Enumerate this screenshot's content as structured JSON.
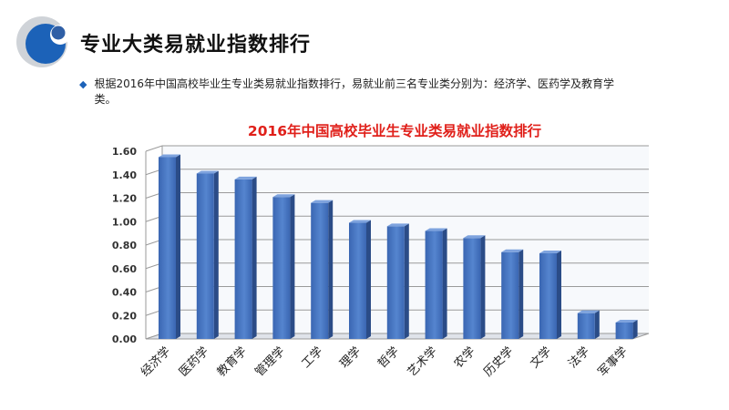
{
  "slide": {
    "title": "专业大类易就业指数排行",
    "bullet": "根据2016年中国高校毕业生专业类易就业指数排行，易就业前三名专业类分别为：经济学、医药学及教育学类。"
  },
  "colors": {
    "bar": "#4472c4",
    "chart_title": "#e0201a",
    "logo_blue": "#1c62b8",
    "bullet": "#1c62b8"
  },
  "chart_data": {
    "type": "bar",
    "title": "2016年中国高校毕业生专业类易就业指数排行",
    "xlabel": "",
    "ylabel": "",
    "ylim": [
      0,
      1.6
    ],
    "yticks": [
      "0.00",
      "0.20",
      "0.40",
      "0.60",
      "0.80",
      "1.00",
      "1.20",
      "1.40",
      "1.60"
    ],
    "grid": true,
    "categories": [
      "经济学",
      "医药学",
      "教育学",
      "管理学",
      "工学",
      "理学",
      "哲学",
      "艺术学",
      "农学",
      "历史学",
      "文学",
      "法学",
      "军事学"
    ],
    "values": [
      1.55,
      1.41,
      1.36,
      1.21,
      1.16,
      0.99,
      0.96,
      0.92,
      0.86,
      0.74,
      0.73,
      0.22,
      0.14
    ]
  }
}
